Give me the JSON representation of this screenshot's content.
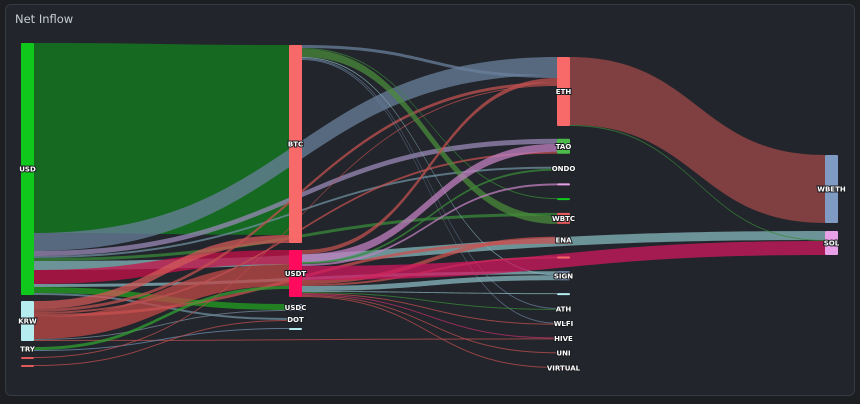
{
  "title": "Net Inflow",
  "chart_data": {
    "type": "sankey",
    "nodes": [
      {
        "label": "USD",
        "color": "#10c81c",
        "col": 0
      },
      {
        "label": "KRW",
        "color": "#b4ecf0",
        "col": 0
      },
      {
        "label": "TRY",
        "color": "#4cbb4c",
        "col": 0
      },
      {
        "label": "",
        "color": "#e05a5a",
        "col": 0
      },
      {
        "label": "",
        "color": "#e05a5a",
        "col": 0
      },
      {
        "label": "BTC",
        "color": "#f86a6a",
        "col": 1
      },
      {
        "label": "USDT",
        "color": "#ff0a5c",
        "col": 1
      },
      {
        "label": "USDC",
        "color": "#7f9bc4",
        "col": 1
      },
      {
        "label": "DOT",
        "color": "#7f9bc4",
        "col": 1
      },
      {
        "label": "",
        "color": "#b4ecf0",
        "col": 1
      },
      {
        "label": "ETH",
        "color": "#f86a6a",
        "col": 2
      },
      {
        "label": "TAO",
        "color": "#4cbb4c",
        "col": 2
      },
      {
        "label": "ONDO",
        "color": "#7f9bc4",
        "col": 2
      },
      {
        "label": "",
        "color": "#e8a0e8",
        "col": 2
      },
      {
        "label": "",
        "color": "#10c81c",
        "col": 2
      },
      {
        "label": "WBTC",
        "color": "#e05a5a",
        "col": 2
      },
      {
        "label": "ENA",
        "color": "#e05a5a",
        "col": 2
      },
      {
        "label": "",
        "color": "#f86a6a",
        "col": 2
      },
      {
        "label": "SIGN",
        "color": "#7f9bc4",
        "col": 2
      },
      {
        "label": "",
        "color": "#b4ecf0",
        "col": 2
      },
      {
        "label": "ATH",
        "color": "#7f9bc4",
        "col": 2
      },
      {
        "label": "WLFI",
        "color": "#7f9bc4",
        "col": 2
      },
      {
        "label": "HIVE",
        "color": "#e8a0e8",
        "col": 2
      },
      {
        "label": "UNI",
        "color": "#7f9bc4",
        "col": 2
      },
      {
        "label": "VIRTUAL",
        "color": "#c05050",
        "col": 2
      },
      {
        "label": "WBETH",
        "color": "#7f9bc4",
        "col": 3
      },
      {
        "label": "SOL",
        "color": "#e8a0e8",
        "col": 3
      }
    ],
    "links": [
      {
        "source": 0,
        "target": 5,
        "value": 190,
        "color": "#13801f"
      },
      {
        "source": 0,
        "target": 10,
        "value": 18,
        "color": "#6a809c"
      },
      {
        "source": 0,
        "target": 26,
        "value": 9,
        "color": "#86b8bc"
      },
      {
        "source": 0,
        "target": 6,
        "value": 14,
        "color": "#c8104a"
      },
      {
        "source": 0,
        "target": 11,
        "value": 5,
        "color": "#9a8ab8"
      },
      {
        "source": 0,
        "target": 18,
        "value": 3,
        "color": "#8ab8c0"
      },
      {
        "source": 0,
        "target": 12,
        "value": 2,
        "color": "#6f8fa0"
      },
      {
        "source": 0,
        "target": 15,
        "value": 3,
        "color": "#3a8a3a"
      },
      {
        "source": 0,
        "target": 7,
        "value": 6,
        "color": "#22a022"
      },
      {
        "source": 0,
        "target": 8,
        "value": 2,
        "color": "#6f8fa0"
      },
      {
        "source": 1,
        "target": 5,
        "value": 8,
        "color": "#d05858"
      },
      {
        "source": 1,
        "target": 10,
        "value": 3,
        "color": "#c05050"
      },
      {
        "source": 1,
        "target": 6,
        "value": 22,
        "color": "#c04848"
      },
      {
        "source": 1,
        "target": 11,
        "value": 2,
        "color": "#c05050"
      },
      {
        "source": 1,
        "target": 16,
        "value": 3,
        "color": "#c85050"
      },
      {
        "source": 1,
        "target": 22,
        "value": 1,
        "color": "#c05050"
      },
      {
        "source": 1,
        "target": 7,
        "value": 1,
        "color": "#7a8a9a"
      },
      {
        "source": 2,
        "target": 6,
        "value": 3,
        "color": "#30a030"
      },
      {
        "source": 2,
        "target": 9,
        "value": 1,
        "color": "#6f8fb0"
      },
      {
        "source": 3,
        "target": 10,
        "value": 1,
        "color": "#c05050"
      },
      {
        "source": 4,
        "target": 8,
        "value": 1,
        "color": "#c05050"
      },
      {
        "source": 5,
        "target": 10,
        "value": 3,
        "color": "#6a809c"
      },
      {
        "source": 5,
        "target": 14,
        "value": 1,
        "color": "#3a8a3a"
      },
      {
        "source": 5,
        "target": 15,
        "value": 8,
        "color": "#4a8a3a"
      },
      {
        "source": 5,
        "target": 18,
        "value": 1,
        "color": "#8ab8c0"
      },
      {
        "source": 5,
        "target": 20,
        "value": 1,
        "color": "#6a809c"
      },
      {
        "source": 5,
        "target": 21,
        "value": 1,
        "color": "#6a809c"
      },
      {
        "source": 6,
        "target": 10,
        "value": 4,
        "color": "#c05050"
      },
      {
        "source": 6,
        "target": 11,
        "value": 8,
        "color": "#c080c0"
      },
      {
        "source": 6,
        "target": 12,
        "value": 2,
        "color": "#3a8a3a"
      },
      {
        "source": 6,
        "target": 13,
        "value": 2,
        "color": "#c080c0"
      },
      {
        "source": 6,
        "target": 16,
        "value": 4,
        "color": "#c85050"
      },
      {
        "source": 6,
        "target": 17,
        "value": 2,
        "color": "#c05050"
      },
      {
        "source": 6,
        "target": 18,
        "value": 5,
        "color": "#8ab8c0"
      },
      {
        "source": 6,
        "target": 19,
        "value": 1,
        "color": "#8ab8c0"
      },
      {
        "source": 6,
        "target": 20,
        "value": 1,
        "color": "#3a8a3a"
      },
      {
        "source": 6,
        "target": 21,
        "value": 1,
        "color": "#c05050"
      },
      {
        "source": 6,
        "target": 22,
        "value": 1,
        "color": "#c0306a"
      },
      {
        "source": 6,
        "target": 23,
        "value": 1,
        "color": "#c05050"
      },
      {
        "source": 6,
        "target": 24,
        "value": 1,
        "color": "#c05050"
      },
      {
        "source": 6,
        "target": 26,
        "value": 14,
        "color": "#d01860"
      },
      {
        "source": 10,
        "target": 25,
        "value": 68,
        "color": "#a04848"
      },
      {
        "source": 10,
        "target": 26,
        "value": 1,
        "color": "#3a8a3a"
      }
    ]
  }
}
